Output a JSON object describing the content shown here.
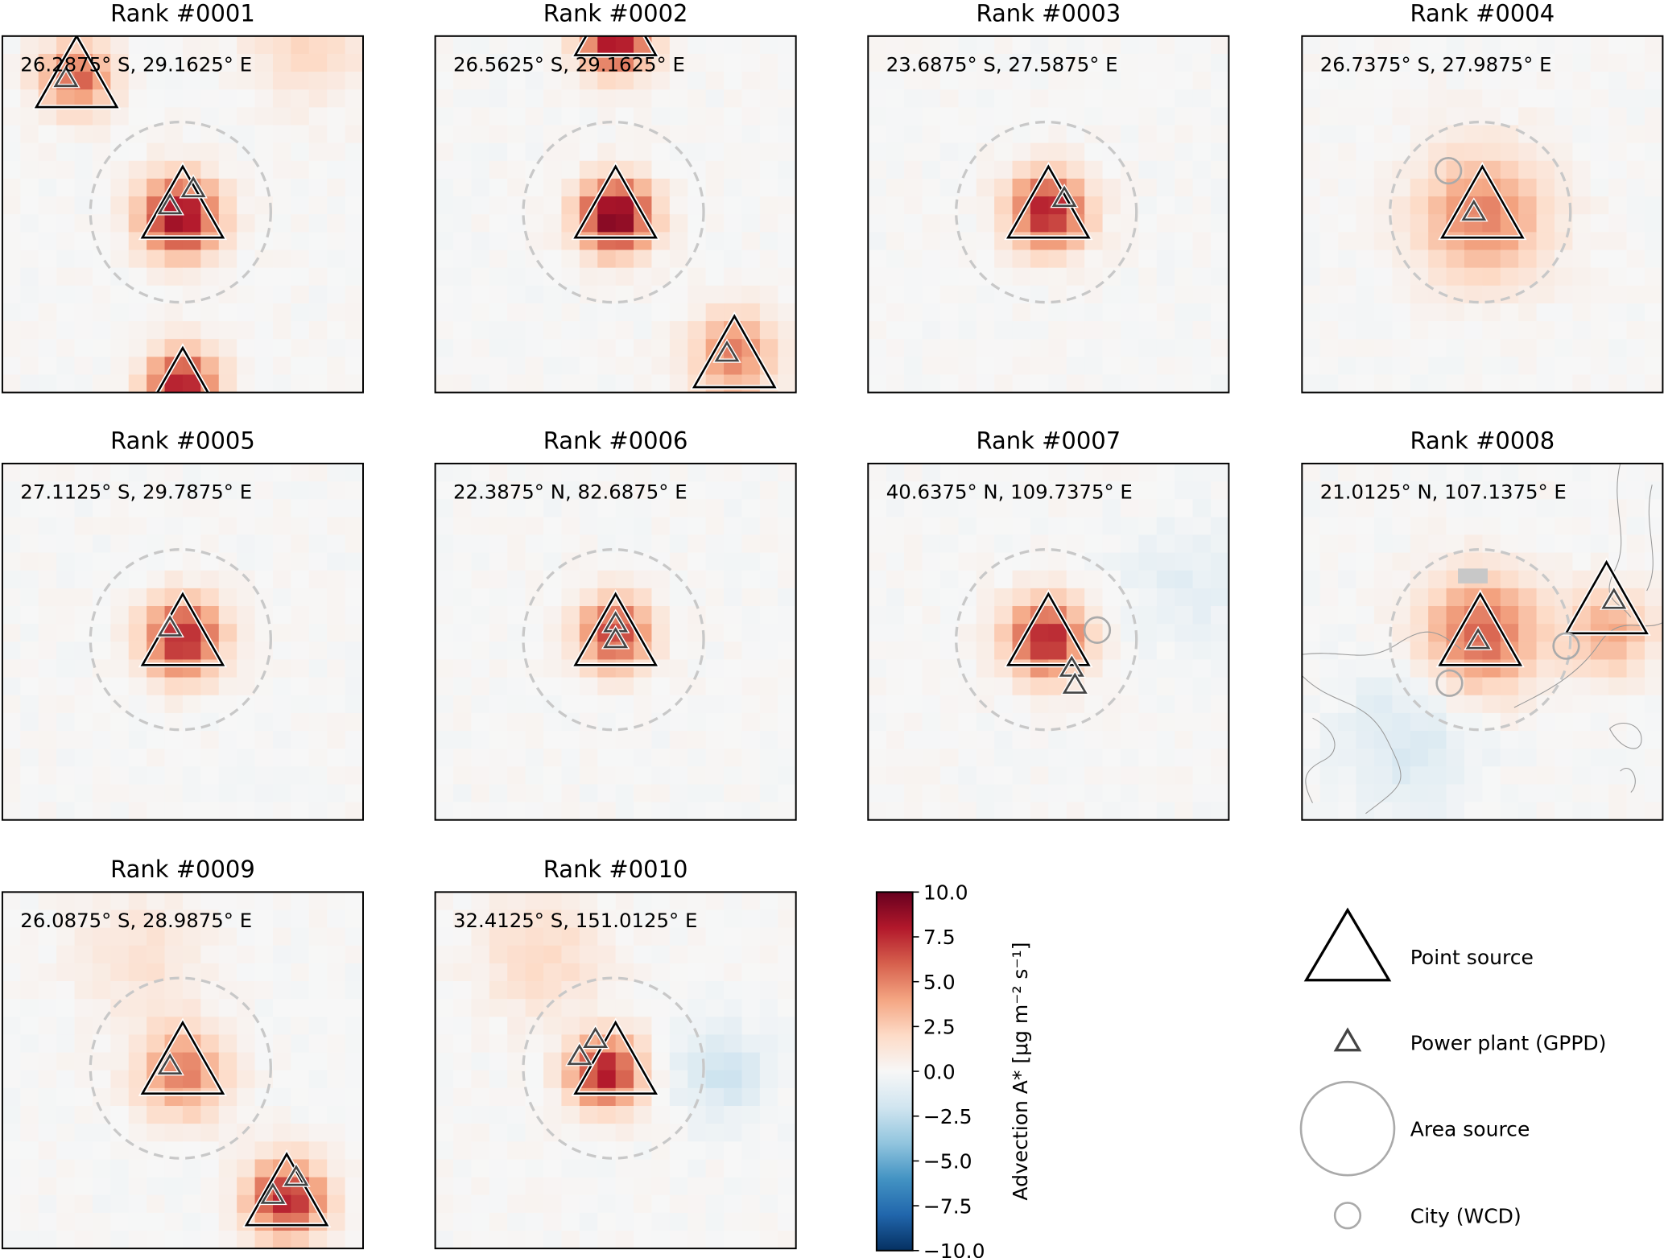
{
  "chart_data": {
    "type": "heatmap",
    "panels": [
      {
        "title": "Rank #0001",
        "coords": "26.2875° S, 29.1625° E"
      },
      {
        "title": "Rank #0002",
        "coords": "26.5625° S, 29.1625° E"
      },
      {
        "title": "Rank #0003",
        "coords": "23.6875° S, 27.5875° E"
      },
      {
        "title": "Rank #0004",
        "coords": "26.7375° S, 27.9875° E"
      },
      {
        "title": "Rank #0005",
        "coords": "27.1125° S, 29.7875° E"
      },
      {
        "title": "Rank #0006",
        "coords": "22.3875° N, 82.6875° E"
      },
      {
        "title": "Rank #0007",
        "coords": "40.6375° N, 109.7375° E"
      },
      {
        "title": "Rank #0008",
        "coords": "21.0125° N, 107.1375° E"
      },
      {
        "title": "Rank #0009",
        "coords": "26.0875° S, 28.9875° E"
      },
      {
        "title": "Rank #0010",
        "coords": "32.4125° S, 151.0125° E"
      }
    ],
    "colorbar": {
      "label": "Advection A* [μg m⁻² s⁻¹]",
      "range": [
        -10,
        10
      ],
      "colormap": "RdBu_r",
      "ticks": [
        "10.0",
        "7.5",
        "5.0",
        "2.5",
        "0.0",
        "−2.5",
        "−5.0",
        "−7.5",
        "−10.0"
      ]
    },
    "legend": [
      {
        "marker": "large-triangle",
        "label": "Point source"
      },
      {
        "marker": "small-triangle",
        "label": "Power plant (GPPD)"
      },
      {
        "marker": "large-circle",
        "label": "Area source"
      },
      {
        "marker": "small-circle",
        "label": "City (WCD)"
      }
    ]
  }
}
